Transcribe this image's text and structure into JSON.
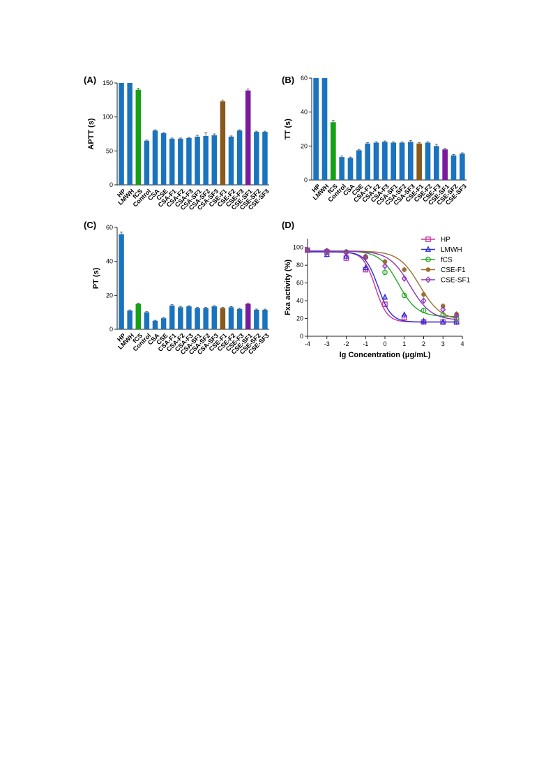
{
  "colors": {
    "default_bar": "#1a73bd",
    "fCS": "#16a016",
    "CSE-F1": "#8a5a1c",
    "CSE-SF1": "#7a1a9e",
    "HP": "#cc3399",
    "LMWH": "#2a2ae0",
    "fCS_line": "#22aa22",
    "CSE-F1_line": "#9a7030",
    "CSE-SF1_line": "#9030c0"
  },
  "chart_data": [
    {
      "id": "A",
      "panel_label": "(A)",
      "type": "bar",
      "ylabel": "APTT (s)",
      "ylim": [
        0,
        150
      ],
      "yticks": [
        0,
        50,
        100,
        150
      ],
      "categories": [
        "HP",
        "LMWH",
        "fCS",
        "Control",
        "CSA",
        "CSE",
        "CSA-F1",
        "CSA-F2",
        "CSA-F3",
        "CSA-SF1",
        "CSA-SF2",
        "CSA-SF3",
        "CSE-F1",
        "CSE-F2",
        "CSE-F3",
        "CSE-SF1",
        "CSE-SF2",
        "CSE-SF3"
      ],
      "values": [
        150,
        150,
        140,
        65,
        80,
        76,
        68,
        68,
        69,
        71,
        72,
        73,
        123,
        71,
        80,
        139,
        78,
        78
      ],
      "errors": [
        0,
        0,
        2,
        1,
        1,
        1,
        1,
        1,
        1,
        2,
        5,
        2,
        2,
        1,
        1,
        2,
        1,
        1
      ],
      "bar_colors": {
        "fCS": "#16a016",
        "CSE-F1": "#8a5a1c",
        "CSE-SF1": "#7a1a9e"
      }
    },
    {
      "id": "B",
      "panel_label": "(B)",
      "type": "bar",
      "ylabel": "TT (s)",
      "ylim": [
        0,
        60
      ],
      "yticks": [
        0,
        20,
        40,
        60
      ],
      "categories": [
        "HP",
        "LMWH",
        "fCS",
        "Control",
        "CSA",
        "CSE",
        "CSA-F1",
        "CSA-F2",
        "CSA-F3",
        "CSA-SF1",
        "CSA-SF2",
        "CSA-SF3",
        "CSE-F1",
        "CSE-F2",
        "CSE-F3",
        "CSE-SF1",
        "CSE-SF2",
        "CSE-SF3"
      ],
      "values": [
        60,
        60,
        34,
        13.5,
        13,
        17.5,
        21.5,
        22,
        22.5,
        22,
        22,
        22.5,
        21.5,
        22,
        20,
        18,
        14.5,
        15.5
      ],
      "errors": [
        0,
        0,
        1,
        0.6,
        0.5,
        0.5,
        0.5,
        0.5,
        0.5,
        0.5,
        0.5,
        0.8,
        0.5,
        0.5,
        1,
        0.6,
        0.5,
        0.5
      ],
      "bar_colors": {
        "fCS": "#16a016",
        "CSE-F1": "#8a5a1c",
        "CSE-SF1": "#7a1a9e"
      }
    },
    {
      "id": "C",
      "panel_label": "(C)",
      "type": "bar",
      "ylabel": "PT (s)",
      "ylim": [
        0,
        60
      ],
      "yticks": [
        0,
        20,
        40,
        60
      ],
      "categories": [
        "HP",
        "LMWH",
        "fCS",
        "Control",
        "CSA",
        "CSE",
        "CSA-F1",
        "CSA-F2",
        "CSA-F3",
        "CSA-SF1",
        "CSA-SF2",
        "CSA-SF3",
        "CSE-F1",
        "CSE-F2",
        "CSE-F3",
        "CSE-SF1",
        "CSE-SF2",
        "CSE-SF3"
      ],
      "values": [
        56,
        11,
        15,
        10,
        5,
        6.5,
        14,
        13,
        13.5,
        12.5,
        12.5,
        13.5,
        12.5,
        13,
        12,
        15,
        11.5,
        11.5
      ],
      "errors": [
        1.2,
        0.4,
        0.4,
        0.4,
        0.3,
        0.3,
        0.5,
        0.5,
        0.4,
        0.4,
        0.4,
        0.4,
        0.4,
        0.4,
        0.4,
        0.4,
        0.4,
        0.4
      ],
      "bar_colors": {
        "fCS": "#16a016",
        "CSE-F1": "#8a5a1c",
        "CSE-SF1": "#7a1a9e"
      }
    },
    {
      "id": "D",
      "panel_label": "(D)",
      "type": "line",
      "xlabel": "lg Concentration (μg/mL)",
      "ylabel": "Fxa activity (%)",
      "xlim": [
        -4,
        4
      ],
      "ylim": [
        0,
        110
      ],
      "xticks": [
        -4,
        -3,
        -2,
        -1,
        0,
        1,
        2,
        3,
        4
      ],
      "yticks": [
        0,
        20,
        40,
        60,
        80,
        100
      ],
      "x": [
        -4,
        -3,
        -2,
        -1,
        0,
        1,
        2,
        3,
        3.7
      ],
      "legend_position": "top-right",
      "series": [
        {
          "name": "HP",
          "marker": "square",
          "color": "#cc3399",
          "values": [
            97,
            95,
            88,
            75,
            36,
            21,
            16,
            16,
            16
          ],
          "fit": {
            "top": 95,
            "bottom": 16,
            "logec50": -0.5,
            "hill": 1.4
          }
        },
        {
          "name": "LMWH",
          "marker": "triangle",
          "color": "#2a2ae0",
          "values": [
            97,
            92,
            90,
            77,
            44,
            24,
            17,
            16,
            16
          ],
          "fit": {
            "top": 95,
            "bottom": 16,
            "logec50": -0.35,
            "hill": 1.3
          }
        },
        {
          "name": "fCS",
          "marker": "circle",
          "color": "#22aa22",
          "values": [
            97,
            96,
            95,
            89,
            72,
            46,
            29,
            24,
            20
          ],
          "fit": {
            "top": 96,
            "bottom": 22,
            "logec50": 0.7,
            "hill": 0.9
          }
        },
        {
          "name": "CSE-F1",
          "marker": "dot",
          "color": "#9a7030",
          "values": [
            97,
            96,
            95,
            90,
            84,
            75,
            47,
            34,
            25
          ],
          "fit": {
            "top": 96,
            "bottom": 18,
            "logec50": 1.8,
            "hill": 0.8
          }
        },
        {
          "name": "CSE-SF1",
          "marker": "diamond",
          "color": "#9030c0",
          "values": [
            97,
            96,
            94,
            89,
            79,
            65,
            40,
            30,
            23
          ],
          "fit": {
            "top": 96,
            "bottom": 18,
            "logec50": 1.3,
            "hill": 0.8
          }
        }
      ]
    }
  ]
}
